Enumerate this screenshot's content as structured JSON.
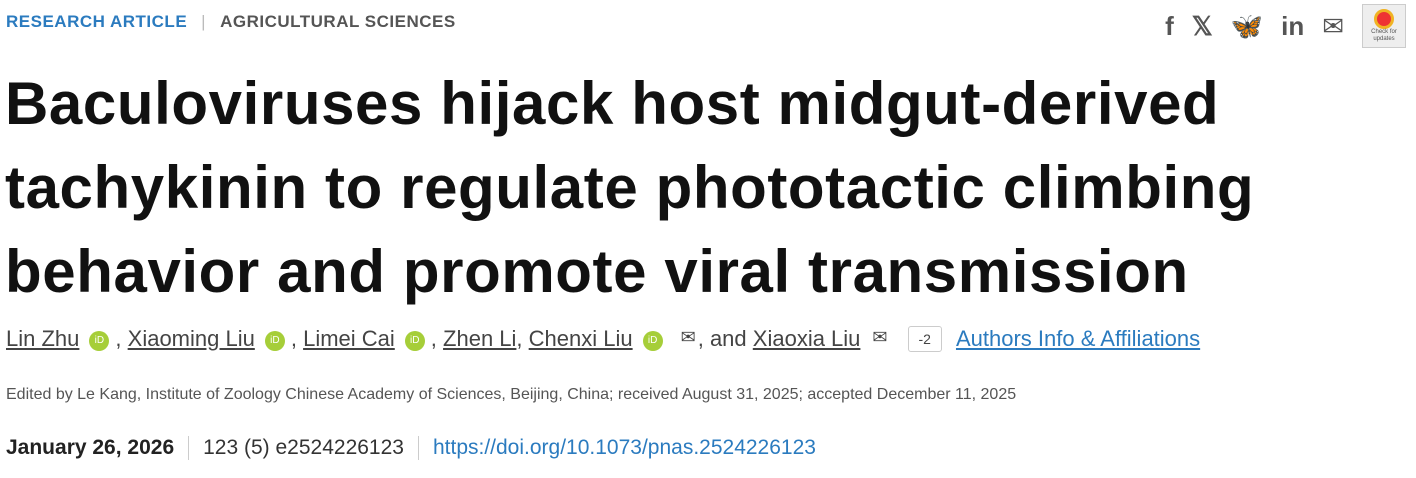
{
  "header": {
    "article_type": "RESEARCH ARTICLE",
    "separator": "|",
    "subject": "AGRICULTURAL SCIENCES"
  },
  "share": {
    "icons": [
      "facebook-icon",
      "x-icon",
      "bluesky-icon",
      "linkedin-icon",
      "email-icon"
    ],
    "check_updates": "Check for updates"
  },
  "title": "Baculoviruses hijack host midgut-derived tachykinin to regulate phototactic climbing behavior and promote viral transmission",
  "authors": [
    {
      "name": "Lin Zhu",
      "orcid": true
    },
    {
      "name": "Xiaoming Liu",
      "orcid": true
    },
    {
      "name": "Limei Cai",
      "orcid": true
    },
    {
      "name": "Zhen Li",
      "orcid": false
    },
    {
      "name": "Chenxi Liu",
      "orcid": true,
      "email": true
    },
    {
      "name": "Xiaoxia Liu",
      "email": true
    }
  ],
  "authors_and": ", and",
  "more_authors": "-2",
  "affiliations_link": "Authors Info & Affiliations",
  "edited": "Edited by Le Kang, Institute of Zoology Chinese Academy of Sciences, Beijing, China; received August 31, 2025; accepted December 11, 2025",
  "date": "January 26, 2026",
  "volume": "123 (5) e2524226123",
  "doi": "https://doi.org/10.1073/pnas.2524226123",
  "orcid_label": "iD",
  "comma": ","
}
